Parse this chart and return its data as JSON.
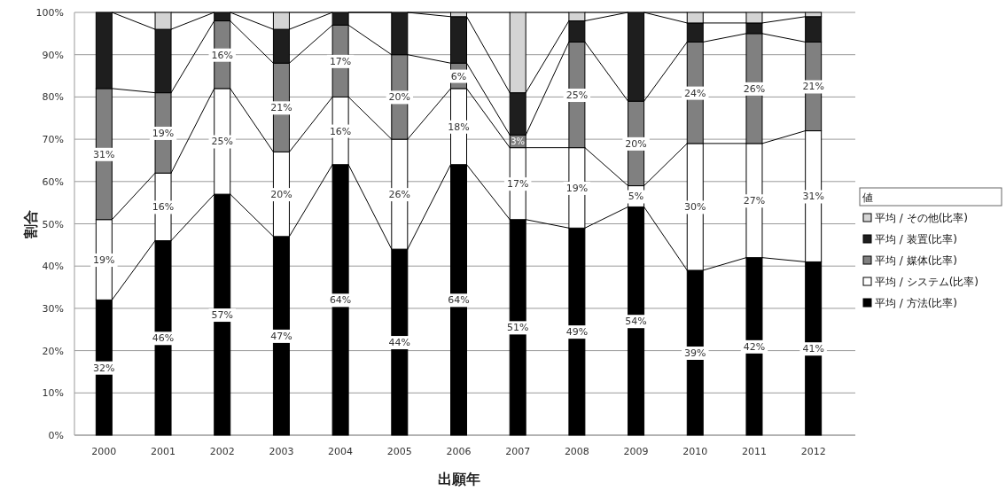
{
  "chart_data": {
    "type": "bar",
    "stacked": true,
    "xlabel": "出願年",
    "ylabel": "割合",
    "legend_title": "値",
    "legend": "right",
    "grid": "y",
    "categories": [
      "2000",
      "2001",
      "2002",
      "2003",
      "2004",
      "2005",
      "2006",
      "2007",
      "2008",
      "2009",
      "2010",
      "2011",
      "2012"
    ],
    "ylim": [
      0,
      100
    ],
    "yticks": [
      {
        "value": 0,
        "label": "0%"
      },
      {
        "value": 10,
        "label": "10%"
      },
      {
        "value": 20,
        "label": "20%"
      },
      {
        "value": 30,
        "label": "30%"
      },
      {
        "value": 40,
        "label": "40%"
      },
      {
        "value": 50,
        "label": "50%"
      },
      {
        "value": 60,
        "label": "60%"
      },
      {
        "value": 70,
        "label": "70%"
      },
      {
        "value": 80,
        "label": "80%"
      },
      {
        "value": 90,
        "label": "90%"
      },
      {
        "value": 100,
        "label": "100%"
      }
    ],
    "series": [
      {
        "name": "平均 / 方法(比率)",
        "color": "#000000",
        "values": [
          32,
          46,
          57,
          47,
          64,
          44,
          64,
          51,
          49,
          54,
          39,
          42,
          41
        ],
        "value_labels": [
          "32%",
          "46%",
          "57%",
          "47%",
          "64%",
          "44%",
          "64%",
          "51%",
          "49%",
          "54%",
          "39%",
          "42%",
          "41%"
        ]
      },
      {
        "name": "平均 / システム(比率)",
        "color": "#ffffff",
        "values": [
          19,
          16,
          25,
          20,
          16,
          26,
          18,
          17,
          19,
          5,
          30,
          27,
          31
        ],
        "value_labels": [
          "19%",
          "16%",
          "25%",
          "20%",
          "16%",
          "26%",
          "18%",
          "17%",
          "19%",
          "5%",
          "30%",
          "27%",
          "31%"
        ]
      },
      {
        "name": "平均 / 媒体(比率)",
        "color": "#808080",
        "values": [
          31,
          19,
          16,
          21,
          17,
          20,
          6,
          3,
          25,
          20,
          24,
          26,
          21
        ],
        "value_labels": [
          "31%",
          "19%",
          "16%",
          "21%",
          "17%",
          "20%",
          "6%",
          "3%",
          "25%",
          "20%",
          "24%",
          "26%",
          "21%"
        ]
      },
      {
        "name": "平均 / 装置(比率)",
        "color": "#1e1e1e",
        "values": [
          18,
          15,
          2,
          8,
          3,
          10,
          11,
          10,
          5,
          21,
          4.5,
          2.5,
          6
        ]
      },
      {
        "name": "平均 / その他(比率)",
        "color": "#d4d4d4",
        "values": [
          0,
          4,
          0,
          4,
          0,
          0,
          1,
          19,
          2,
          0,
          2.5,
          2.5,
          1
        ]
      }
    ]
  }
}
